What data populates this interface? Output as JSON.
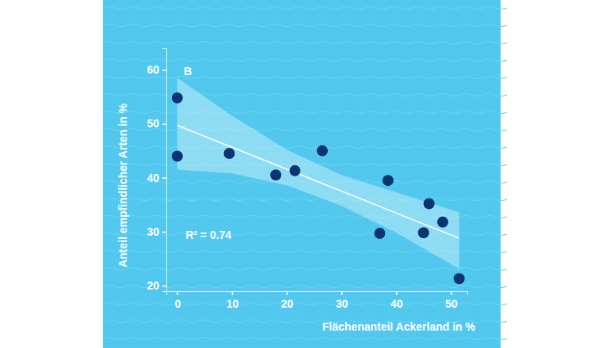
{
  "chart_data": {
    "type": "scatter",
    "x_label": "Flächenanteil Ackerland in %",
    "y_label": "Anteil empfindlicher Arten in %",
    "annotations": [
      "B",
      "R² = 0.74"
    ],
    "x": [
      0,
      0,
      9.5,
      18,
      21.5,
      26.5,
      37,
      38.5,
      45,
      46,
      48.5,
      51.5
    ],
    "series": [
      {
        "values": [
          54.8,
          44,
          44.5,
          40.5,
          41.3,
          45,
          29.7,
          39.5,
          29.8,
          35.2,
          31.8,
          21.3
        ],
        "color": "#0b3470",
        "marker": "circle"
      }
    ],
    "fit": {
      "x": [
        0,
        51.5
      ],
      "y": [
        49.7,
        28.8
      ],
      "color": "#ffffff"
    },
    "band": {
      "x": [
        0,
        10,
        20,
        30,
        40,
        51.5
      ],
      "upper": [
        58.5,
        51.5,
        45.2,
        40.5,
        37.3,
        33.6
      ],
      "lower": [
        41.5,
        40.8,
        38.6,
        34.8,
        29.8,
        23.1
      ]
    },
    "xlim": [
      -2,
      53
    ],
    "ylim": [
      19,
      64
    ],
    "xticks": [
      0,
      10,
      20,
      30,
      40,
      50
    ],
    "yticks": [
      20,
      30,
      40,
      50,
      60
    ],
    "grid": false
  }
}
